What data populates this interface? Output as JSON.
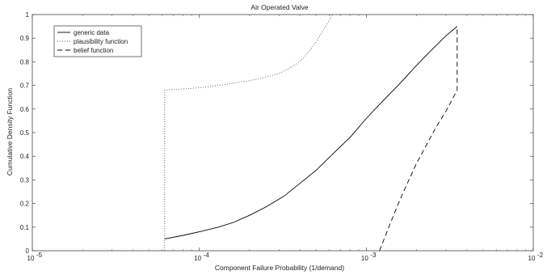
{
  "chart_data": {
    "type": "line",
    "title": "Air Operated Valve",
    "xlabel": "Component Failure Probability (1/demand)",
    "ylabel": "Cumulative Density Function",
    "xscale": "log",
    "xlim": [
      1e-05,
      0.01
    ],
    "ylim": [
      0,
      1
    ],
    "grid": false,
    "legend_position": "top-left",
    "x_ticks": [
      {
        "base": "10",
        "exp": "-5",
        "value": 1e-05
      },
      {
        "base": "10",
        "exp": "-4",
        "value": 0.0001
      },
      {
        "base": "10",
        "exp": "-3",
        "value": 0.001
      },
      {
        "base": "10",
        "exp": "-2",
        "value": 0.01
      }
    ],
    "y_ticks": [
      "0",
      "0.1",
      "0.2",
      "0.3",
      "0.4",
      "0.5",
      "0.6",
      "0.7",
      "0.8",
      "0.9",
      "1"
    ],
    "y_tick_values": [
      0,
      0.1,
      0.2,
      0.3,
      0.4,
      0.5,
      0.6,
      0.7,
      0.8,
      0.9,
      1
    ],
    "series": [
      {
        "name": "generic data",
        "style": "solid",
        "color": "#000000",
        "x": [
          6.2e-05,
          8e-05,
          0.0001,
          0.00013,
          0.00016,
          0.0002,
          0.00025,
          0.00032,
          0.0004,
          0.0005,
          0.00063,
          0.0008,
          0.001,
          0.00126,
          0.0016,
          0.002,
          0.0025,
          0.003,
          0.0035
        ],
        "y": [
          0.05,
          0.065,
          0.08,
          0.1,
          0.12,
          0.15,
          0.185,
          0.23,
          0.285,
          0.34,
          0.41,
          0.48,
          0.56,
          0.635,
          0.71,
          0.785,
          0.855,
          0.91,
          0.95
        ]
      },
      {
        "name": "plausibility function",
        "style": "dotted",
        "color": "#555555",
        "x": [
          6.2e-05,
          6.2e-05,
          8e-05,
          0.0001,
          0.00013,
          0.00016,
          0.0002,
          0.00025,
          0.0003,
          0.00035,
          0.0004,
          0.00045,
          0.0005,
          0.00056,
          0.00063
        ],
        "y": [
          0.0,
          0.68,
          0.685,
          0.69,
          0.7,
          0.71,
          0.72,
          0.735,
          0.75,
          0.775,
          0.8,
          0.84,
          0.885,
          0.94,
          1.0
        ]
      },
      {
        "name": "belief function",
        "style": "dashed",
        "color": "#000000",
        "x": [
          0.0012,
          0.0014,
          0.0016,
          0.0018,
          0.002,
          0.0023,
          0.0026,
          0.003,
          0.0035,
          0.0035
        ],
        "y": [
          0.0,
          0.12,
          0.22,
          0.3,
          0.37,
          0.45,
          0.52,
          0.59,
          0.68,
          0.95
        ]
      }
    ]
  }
}
